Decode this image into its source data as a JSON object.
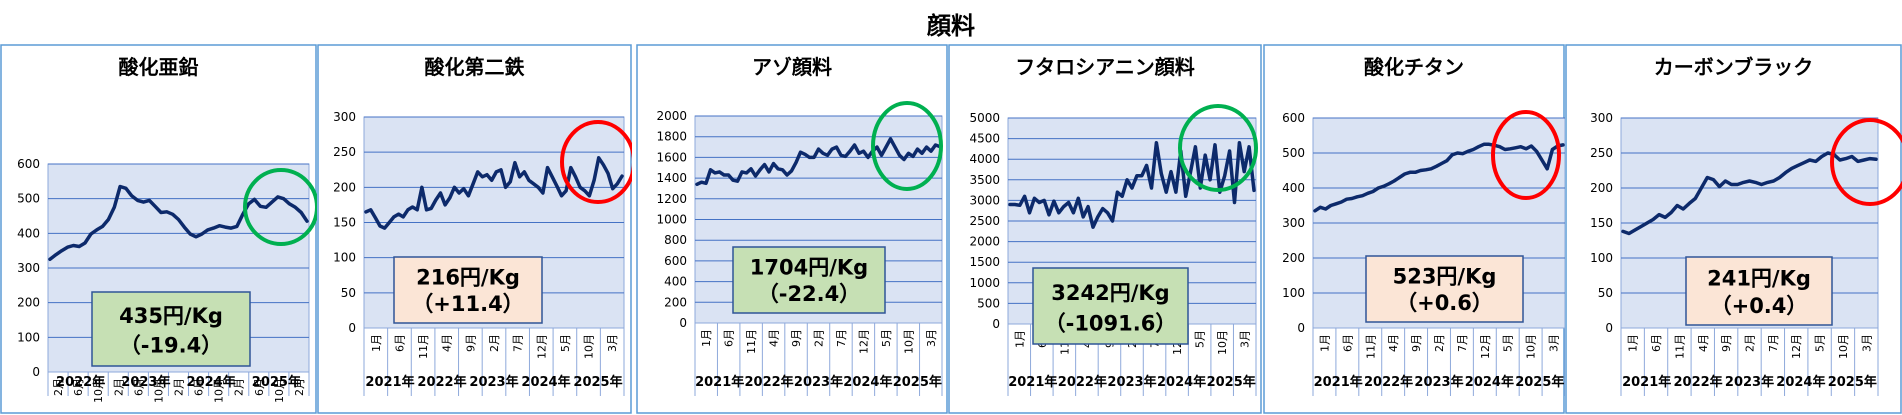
{
  "page_title": "顔料",
  "chart_data": [
    {
      "type": "line",
      "title": "酸化亜鉛",
      "ylim": [
        0,
        600
      ],
      "yticks": [
        0,
        100,
        200,
        300,
        400,
        500,
        600
      ],
      "x_month_labels": [
        "2月",
        "6月",
        "10月",
        "2月",
        "6月",
        "10月",
        "2月",
        "6月",
        "10月",
        "2月",
        "6月",
        "10月",
        "2月"
      ],
      "x_year_labels": [
        "2022年",
        "2023年",
        "2024年",
        "2025年"
      ],
      "values": [
        325,
        338,
        350,
        360,
        365,
        362,
        372,
        398,
        410,
        420,
        440,
        475,
        535,
        530,
        508,
        495,
        490,
        495,
        478,
        460,
        462,
        455,
        440,
        418,
        398,
        390,
        398,
        410,
        415,
        422,
        418,
        415,
        420,
        455,
        485,
        498,
        478,
        475,
        490,
        505,
        500,
        485,
        475,
        460,
        435
      ],
      "value_label": "435円/Kg",
      "change_label": "（-19.4）",
      "label_bg": "#c6e0b4",
      "circle_color": "#00b050",
      "grid": true,
      "line_color": "#0d2a6b",
      "plot_bg": "#dae3f3"
    },
    {
      "type": "line",
      "title": "酸化第二鉄",
      "ylim": [
        0,
        300
      ],
      "yticks": [
        0,
        50,
        100,
        150,
        200,
        250,
        300
      ],
      "x_month_labels": [
        "1月",
        "6月",
        "11月",
        "4月",
        "9月",
        "2月",
        "7月",
        "12月",
        "5月",
        "10月",
        "3月"
      ],
      "x_year_labels": [
        "2021年",
        "2022年",
        "2023年",
        "2024年",
        "2025年"
      ],
      "values": [
        165,
        168,
        157,
        145,
        142,
        150,
        158,
        162,
        158,
        168,
        172,
        168,
        200,
        168,
        170,
        182,
        192,
        175,
        185,
        200,
        192,
        198,
        188,
        205,
        222,
        215,
        218,
        210,
        222,
        225,
        200,
        208,
        235,
        215,
        222,
        210,
        205,
        200,
        192,
        228,
        215,
        202,
        188,
        195,
        228,
        215,
        200,
        195,
        188,
        210,
        242,
        232,
        220,
        198,
        205,
        216
      ],
      "value_label": "216円/Kg",
      "change_label": "（+11.4）",
      "label_bg": "#fbe5d6",
      "circle_color": "#ff0000",
      "grid": true,
      "line_color": "#0d2a6b",
      "plot_bg": "#dae3f3"
    },
    {
      "type": "line",
      "title": "アゾ顔料",
      "ylim": [
        0,
        2000
      ],
      "yticks": [
        0,
        200,
        400,
        600,
        800,
        1000,
        1200,
        1400,
        1600,
        1800,
        2000
      ],
      "x_month_labels": [
        "1月",
        "6月",
        "11月",
        "4月",
        "9月",
        "2月",
        "7月",
        "12月",
        "5月",
        "10月",
        "3月"
      ],
      "x_year_labels": [
        "2021年",
        "2022年",
        "2023年",
        "2024年",
        "2025年"
      ],
      "values": [
        1340,
        1360,
        1350,
        1480,
        1450,
        1460,
        1430,
        1430,
        1380,
        1370,
        1460,
        1450,
        1490,
        1420,
        1480,
        1530,
        1460,
        1540,
        1490,
        1480,
        1430,
        1470,
        1550,
        1650,
        1630,
        1600,
        1600,
        1680,
        1640,
        1620,
        1680,
        1700,
        1620,
        1610,
        1660,
        1720,
        1640,
        1660,
        1600,
        1660,
        1700,
        1620,
        1700,
        1780,
        1700,
        1620,
        1580,
        1640,
        1610,
        1680,
        1640,
        1700,
        1660,
        1720,
        1704
      ],
      "value_label": "1704円/Kg",
      "change_label": "（-22.4）",
      "label_bg": "#c6e0b4",
      "circle_color": "#00b050",
      "grid": true,
      "line_color": "#0d2a6b",
      "plot_bg": "#dae3f3"
    },
    {
      "type": "line",
      "title": "フタロシアニン顔料",
      "ylim": [
        0,
        5000
      ],
      "yticks": [
        0,
        500,
        1000,
        1500,
        2000,
        2500,
        3000,
        3500,
        4000,
        4500,
        5000
      ],
      "x_month_labels": [
        "1月",
        "6月",
        "11月",
        "4月",
        "9月",
        "2月",
        "7月",
        "12月",
        "5月",
        "10月",
        "3月"
      ],
      "x_year_labels": [
        "2021年",
        "2022年",
        "2023年",
        "2024年",
        "2025年"
      ],
      "values": [
        2900,
        2900,
        2880,
        3100,
        2700,
        3050,
        2950,
        3000,
        2650,
        2980,
        2700,
        2850,
        2950,
        2700,
        3050,
        2600,
        2850,
        2350,
        2600,
        2800,
        2700,
        2500,
        3200,
        3100,
        3500,
        3300,
        3600,
        3600,
        3850,
        3300,
        4400,
        3650,
        3200,
        3700,
        3200,
        4200,
        3100,
        3700,
        4300,
        3300,
        4100,
        3500,
        4350,
        3200,
        3600,
        4200,
        2950,
        4400,
        3700,
        4300,
        3242
      ],
      "value_label": "3242円/Kg",
      "change_label": "（-1091.6）",
      "label_bg": "#c6e0b4",
      "circle_color": "#00b050",
      "grid": true,
      "line_color": "#0d2a6b",
      "plot_bg": "#dae3f3"
    },
    {
      "type": "line",
      "title": "酸化チタン",
      "ylim": [
        0,
        600
      ],
      "yticks": [
        0,
        100,
        200,
        300,
        400,
        500,
        600
      ],
      "x_month_labels": [
        "1月",
        "6月",
        "11月",
        "4月",
        "9月",
        "2月",
        "7月",
        "12月",
        "5月",
        "10月",
        "3月"
      ],
      "x_year_labels": [
        "2021年",
        "2022年",
        "2023年",
        "2024年",
        "2025年"
      ],
      "values": [
        335,
        345,
        340,
        350,
        355,
        360,
        368,
        370,
        375,
        378,
        385,
        390,
        400,
        405,
        412,
        420,
        430,
        440,
        445,
        445,
        450,
        452,
        455,
        462,
        470,
        478,
        495,
        500,
        498,
        505,
        510,
        518,
        525,
        525,
        522,
        518,
        510,
        512,
        515,
        518,
        512,
        520,
        505,
        480,
        455,
        510,
        520,
        523
      ],
      "value_label": "523円/Kg",
      "change_label": "（+0.6）",
      "label_bg": "#fbe5d6",
      "circle_color": "#ff0000",
      "grid": true,
      "line_color": "#0d2a6b",
      "plot_bg": "#dae3f3"
    },
    {
      "type": "line",
      "title": "カーボンブラック",
      "ylim": [
        0,
        300
      ],
      "yticks": [
        0,
        50,
        100,
        150,
        200,
        250,
        300
      ],
      "x_month_labels": [
        "1月",
        "6月",
        "11月",
        "4月",
        "9月",
        "2月",
        "7月",
        "12月",
        "5月",
        "10月",
        "3月"
      ],
      "x_year_labels": [
        "2021年",
        "2022年",
        "2023年",
        "2024年",
        "2025年"
      ],
      "values": [
        138,
        135,
        140,
        145,
        150,
        155,
        162,
        158,
        165,
        175,
        170,
        178,
        185,
        200,
        215,
        212,
        202,
        210,
        205,
        205,
        208,
        210,
        208,
        205,
        208,
        210,
        215,
        222,
        228,
        232,
        236,
        240,
        238,
        245,
        250,
        248,
        240,
        242,
        245,
        238,
        240,
        242,
        241
      ],
      "value_label": "241円/Kg",
      "change_label": "（+0.4）",
      "label_bg": "#fbe5d6",
      "circle_color": "#ff0000",
      "grid": true,
      "line_color": "#0d2a6b",
      "plot_bg": "#dae3f3"
    }
  ]
}
